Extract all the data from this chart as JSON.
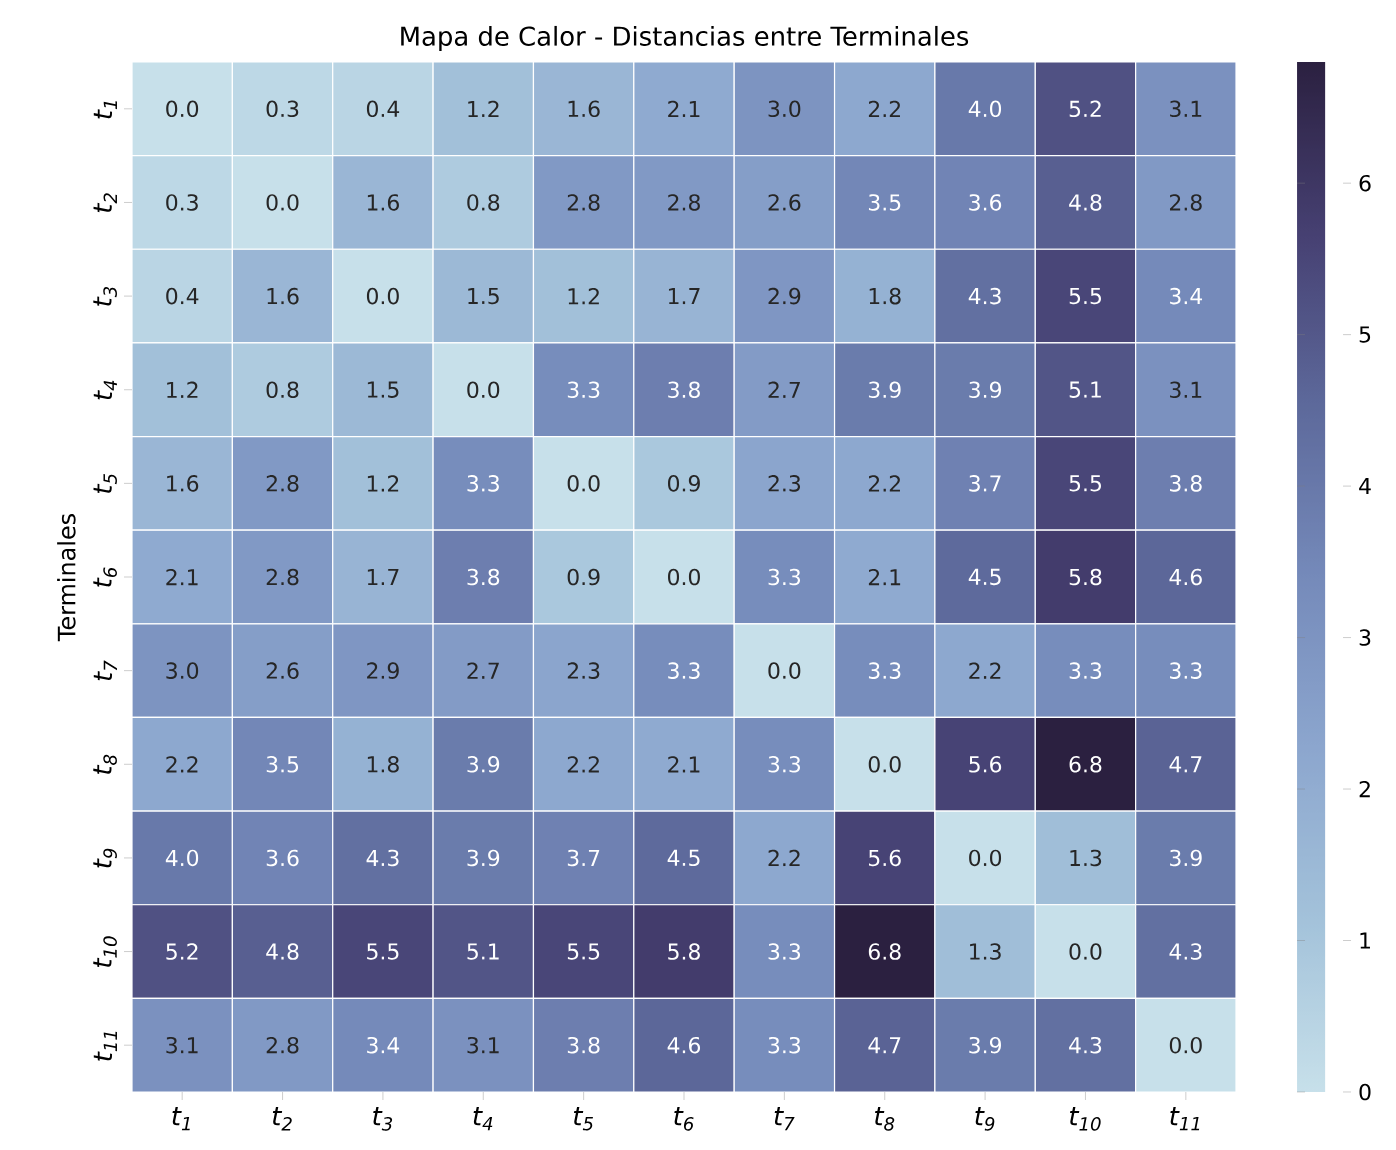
{
  "chart_data": {
    "type": "heatmap",
    "title": "Mapa de Calor - Distancias entre Terminales",
    "ylabel": "Terminales",
    "categories": [
      "t$_{1}$",
      "t$_{2}$",
      "t$_{3}$",
      "t$_{4}$",
      "t$_{5}$",
      "t$_{6}$",
      "t$_{7}$",
      "t$_{8}$",
      "t$_{9}$",
      "t$_{10}$",
      "t$_{11}$"
    ],
    "y_categories": [
      "t$_{1}$",
      "t$_{2}$",
      "t$_{3}$",
      "t$_{4}$",
      "t$_{5}$",
      "t$_{6}$",
      "t$_{7}$",
      "t$_{8}$",
      "t$_{9}$",
      "t$_{10}$",
      "t$_{11}$"
    ],
    "cells": [
      [
        0.0,
        0.3,
        0.4,
        1.2,
        1.6,
        2.1,
        3.0,
        2.2,
        4.0,
        5.2,
        3.1
      ],
      [
        0.3,
        0.0,
        1.6,
        0.8,
        2.8,
        2.8,
        2.6,
        3.5,
        3.6,
        4.8,
        2.8
      ],
      [
        0.4,
        1.6,
        0.0,
        1.5,
        1.2,
        1.7,
        2.9,
        1.8,
        4.3,
        5.5,
        3.4
      ],
      [
        1.2,
        0.8,
        1.5,
        0.0,
        3.3,
        3.8,
        2.7,
        3.9,
        3.9,
        5.1,
        3.1
      ],
      [
        1.6,
        2.8,
        1.2,
        3.3,
        0.0,
        0.9,
        2.3,
        2.2,
        3.7,
        5.5,
        3.8
      ],
      [
        2.1,
        2.8,
        1.7,
        3.8,
        0.9,
        0.0,
        3.3,
        2.1,
        4.5,
        5.8,
        4.6
      ],
      [
        3.0,
        2.6,
        2.9,
        2.7,
        2.3,
        3.3,
        0.0,
        3.3,
        2.2,
        3.3,
        3.3
      ],
      [
        2.2,
        3.5,
        1.8,
        3.9,
        2.2,
        2.1,
        3.3,
        0.0,
        5.6,
        6.8,
        4.7
      ],
      [
        4.0,
        3.6,
        4.3,
        3.9,
        3.7,
        4.5,
        2.2,
        5.6,
        0.0,
        1.3,
        3.9
      ],
      [
        5.2,
        4.8,
        5.5,
        5.1,
        5.5,
        5.8,
        3.3,
        6.8,
        1.3,
        0.0,
        4.3
      ],
      [
        3.1,
        2.8,
        3.4,
        3.1,
        3.8,
        4.6,
        3.3,
        4.7,
        3.9,
        4.3,
        0.0
      ]
    ],
    "cell_labels": [
      [
        "0.0",
        "0.3",
        "0.4",
        "1.2",
        "1.6",
        "2.1",
        "3.0",
        "2.2",
        "4.0",
        "5.2",
        "3.1"
      ],
      [
        "0.3",
        "0.0",
        "1.6",
        "0.8",
        "2.8",
        "2.8",
        "2.6",
        "3.5",
        "3.6",
        "4.8",
        "2.8"
      ],
      [
        "0.4",
        "1.6",
        "0.0",
        "1.5",
        "1.2",
        "1.7",
        "2.9",
        "1.8",
        "4.3",
        "5.5",
        "3.4"
      ],
      [
        "1.2",
        "0.8",
        "1.5",
        "0.0",
        "3.3",
        "3.8",
        "2.7",
        "3.9",
        "3.9",
        "5.1",
        "3.1"
      ],
      [
        "1.6",
        "2.8",
        "1.2",
        "3.3",
        "0.0",
        "0.9",
        "2.3",
        "2.2",
        "3.7",
        "5.5",
        "3.8"
      ],
      [
        "2.1",
        "2.8",
        "1.7",
        "3.8",
        "0.9",
        "0.0",
        "3.3",
        "2.1",
        "4.5",
        "5.8",
        "4.6"
      ],
      [
        "3.0",
        "2.6",
        "2.9",
        "2.7",
        "2.3",
        "3.3",
        "0.0",
        "3.3",
        "2.2",
        "3.3",
        "3.3"
      ],
      [
        "2.2",
        "3.5",
        "1.8",
        "3.9",
        "2.2",
        "2.1",
        "3.3",
        "0.0",
        "5.6",
        "6.8",
        "4.7"
      ],
      [
        "4.0",
        "3.6",
        "4.3",
        "3.9",
        "3.7",
        "4.5",
        "2.2",
        "5.6",
        "0.0",
        "1.3",
        "3.9"
      ],
      [
        "5.2",
        "4.8",
        "5.5",
        "5.1",
        "5.5",
        "5.8",
        "3.3",
        "6.8",
        "1.3",
        "0.0",
        "4.3"
      ],
      [
        "3.1",
        "2.8",
        "3.4",
        "3.1",
        "3.8",
        "4.6",
        "3.3",
        "4.7",
        "3.9",
        "4.3",
        "0.0"
      ]
    ],
    "clim": [
      0,
      6.8
    ],
    "cticks": [
      0,
      1,
      2,
      3,
      4,
      5,
      6
    ]
  }
}
